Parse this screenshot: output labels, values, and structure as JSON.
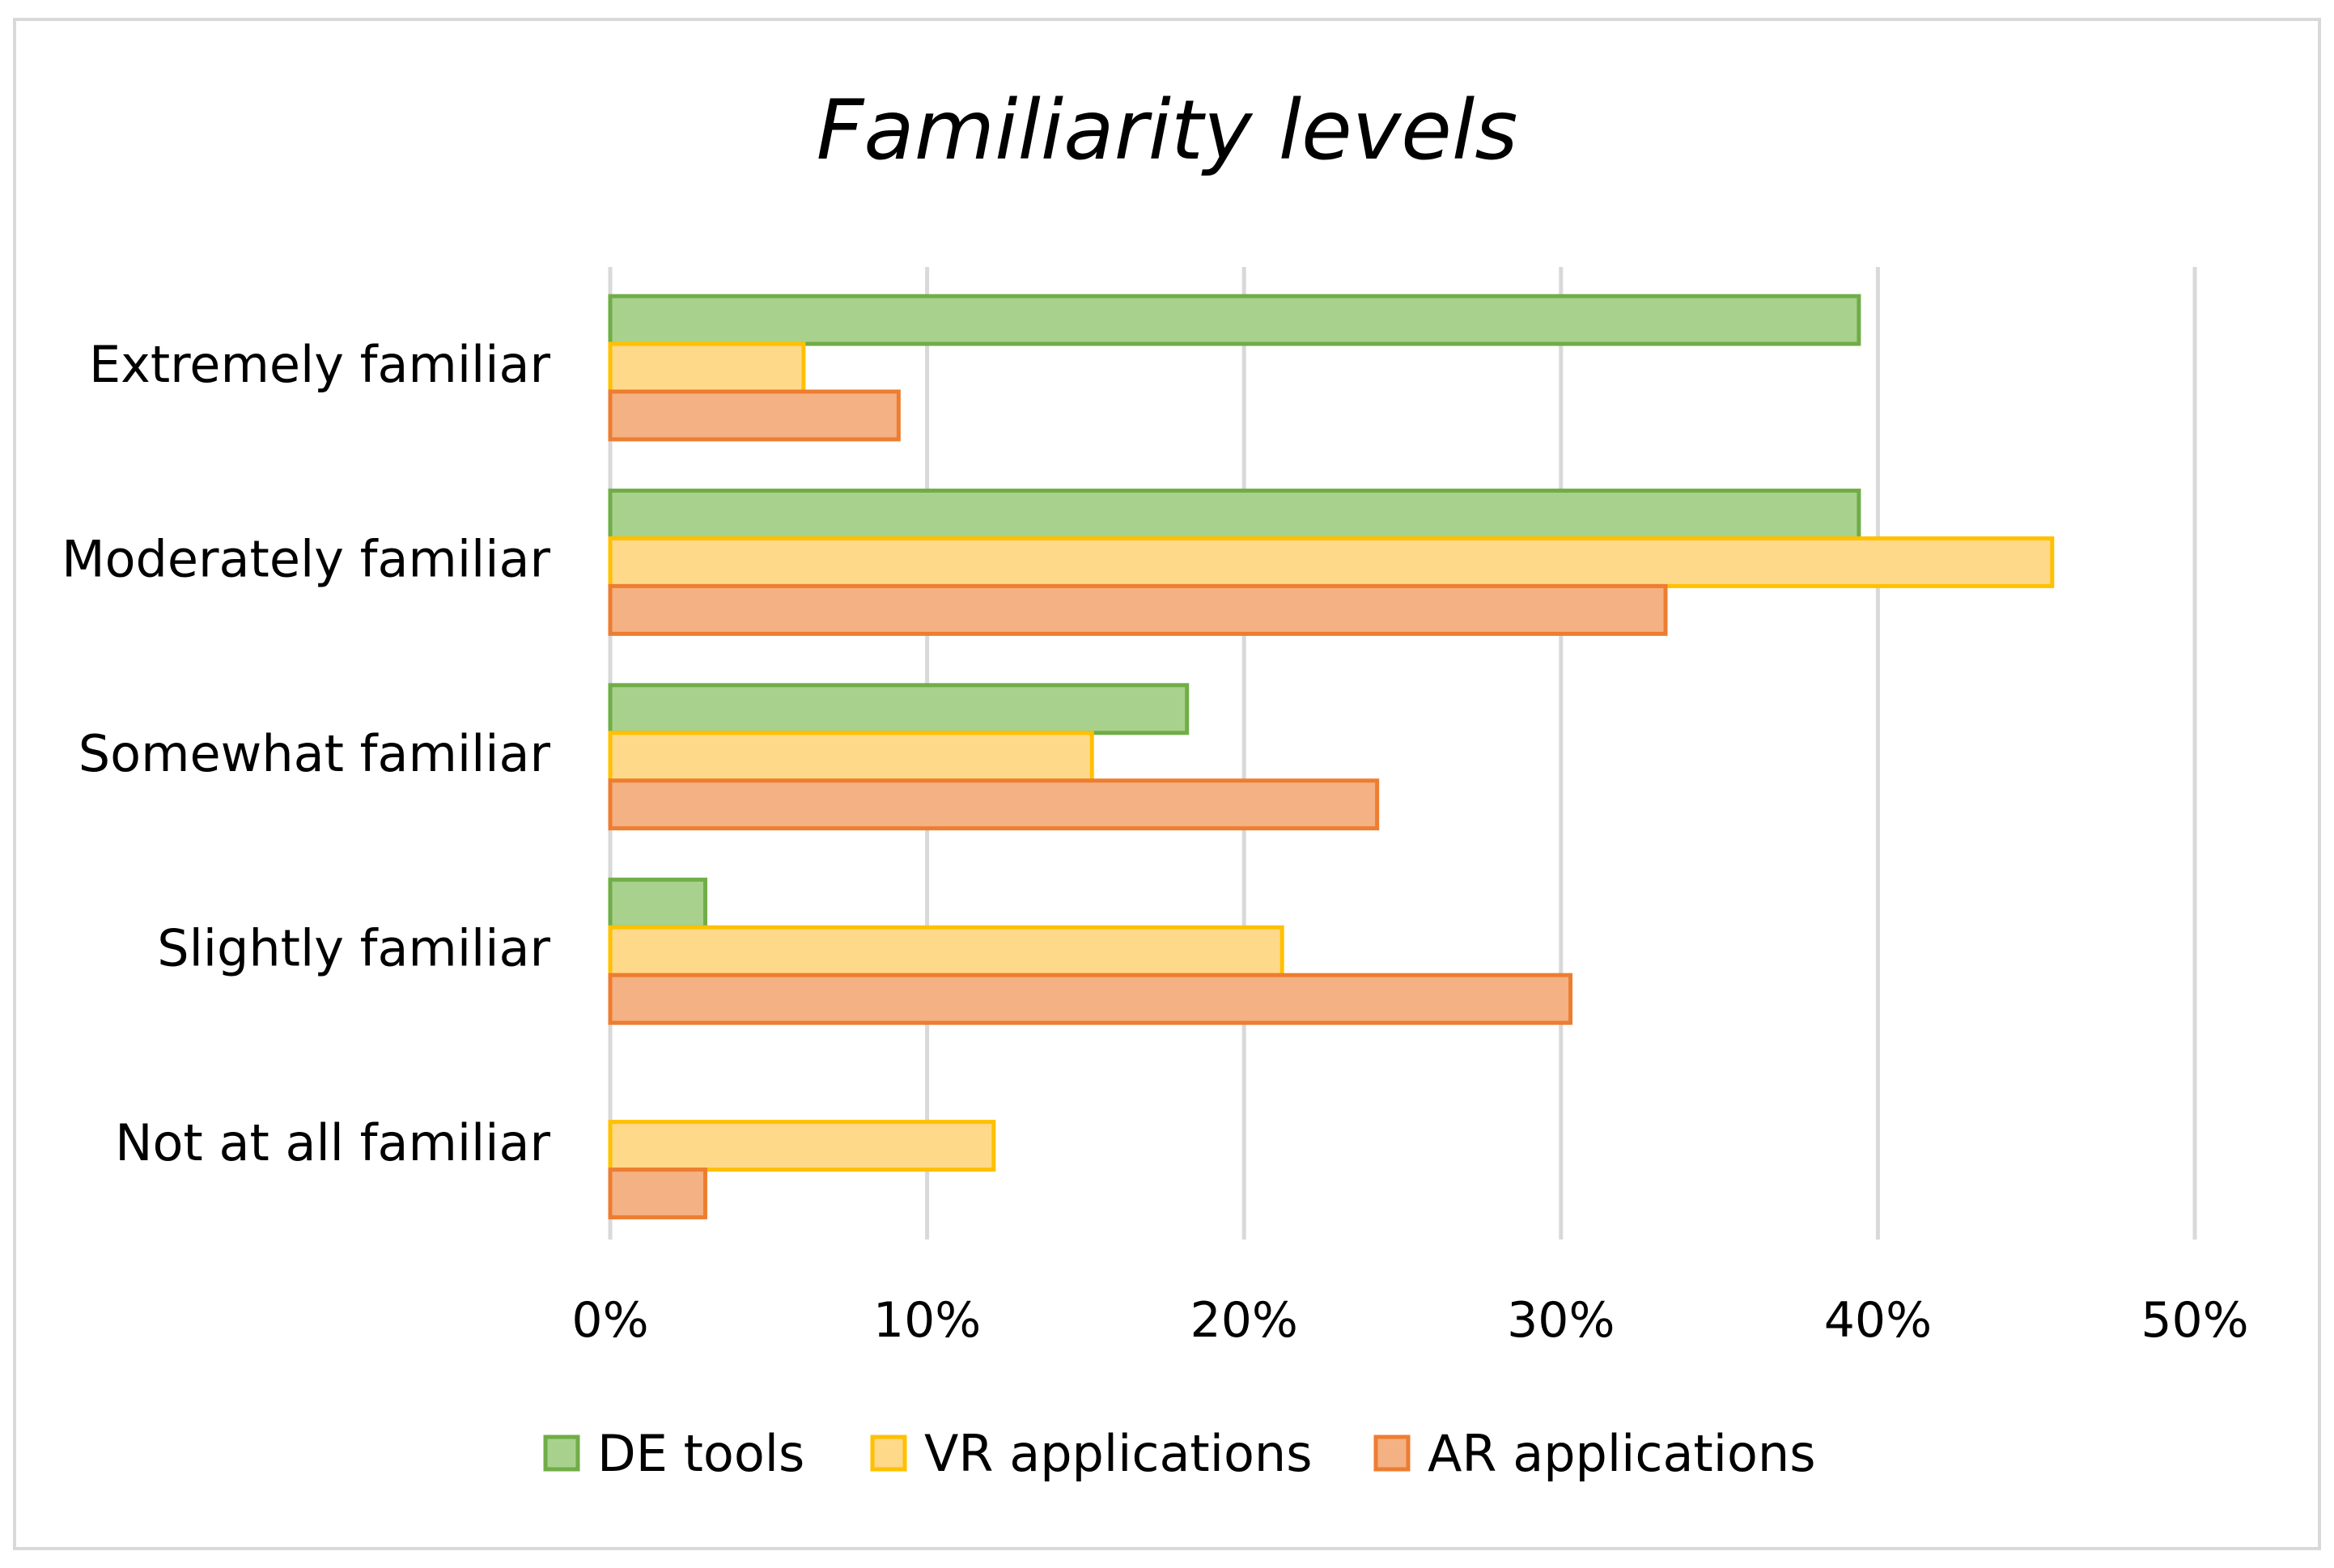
{
  "chart_data": {
    "type": "bar",
    "orientation": "horizontal",
    "title": "Familiarity levels",
    "categories": [
      "Extremely familiar",
      "Moderately familiar",
      "Somewhat familiar",
      "Slightly familiar",
      "Not at all familiar"
    ],
    "series": [
      {
        "name": "DE tools",
        "values": [
          39.4,
          39.4,
          18.2,
          3.0,
          0
        ],
        "fill": "#a9d18e",
        "stroke": "#70ad47"
      },
      {
        "name": "VR applications",
        "values": [
          6.1,
          45.5,
          15.2,
          21.2,
          12.1
        ],
        "fill": "#ffd98a",
        "stroke": "#ffc000"
      },
      {
        "name": "AR applications",
        "values": [
          9.1,
          33.3,
          24.2,
          30.3,
          3.0
        ],
        "fill": "#f4b183",
        "stroke": "#ed7d31"
      }
    ],
    "value_unit": "percent",
    "xlim": [
      0,
      50
    ],
    "x_ticks": [
      0,
      10,
      20,
      30,
      40,
      50
    ],
    "x_tick_labels": [
      "0%",
      "10%",
      "20%",
      "30%",
      "40%",
      "50%"
    ],
    "grid": true,
    "legend_position": "bottom",
    "gridline_color": "#d9d9d9"
  }
}
